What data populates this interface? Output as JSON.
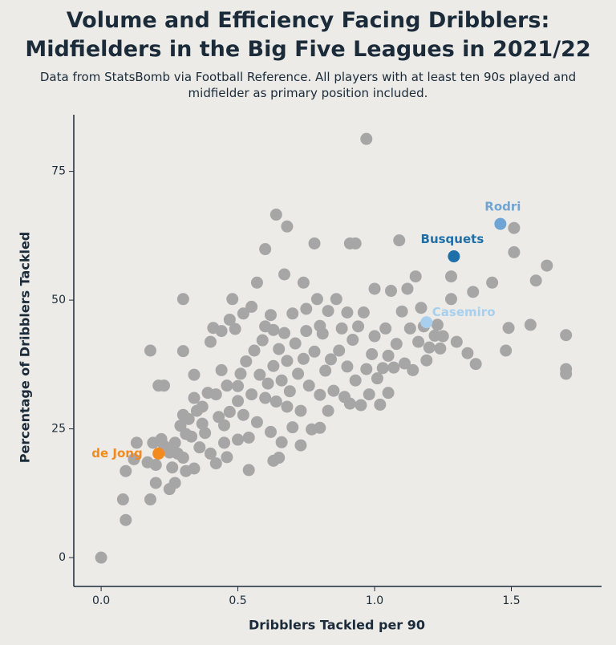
{
  "chart_data": {
    "type": "scatter",
    "title": "Volume and Efficiency Facing Dribblers: Midfielders in the Big Five Leagues in 2021/22",
    "subtitle": "Data from StatsBomb via Football Reference. All players with at least ten 90s played and midfielder as primary position included.",
    "x_label": "Dribblers Tackled per 90",
    "y_label": "Percentage of Dribblers Tackled",
    "xlim": [
      -0.1,
      1.83
    ],
    "ylim": [
      -5.6,
      86
    ],
    "xticks": [
      {
        "value": 0,
        "label": "0.0"
      },
      0.5,
      {
        "value": 1,
        "label": "1.0"
      },
      1.5
    ],
    "yticks": [
      0,
      25,
      50,
      75
    ],
    "series": [
      {
        "color": "#a6a6a6",
        "x": [
          0,
          0.08,
          0.09,
          0.09,
          0.13,
          0.17,
          0.18,
          0.18,
          0.19,
          0.2,
          0.2,
          0.21,
          0.23,
          0.23,
          0.25,
          0.25,
          0.26,
          0.27,
          0.27,
          0.28,
          0.29,
          0.3,
          0.3,
          0.3,
          0.3,
          0.31,
          0.31,
          0.32,
          0.33,
          0.34,
          0.34,
          0.34,
          0.35,
          0.36,
          0.37,
          0.37,
          0.38,
          0.39,
          0.4,
          0.4,
          0.41,
          0.42,
          0.42,
          0.43,
          0.44,
          0.44,
          0.45,
          0.45,
          0.46,
          0.46,
          0.47,
          0.47,
          0.48,
          0.49,
          0.5,
          0.5,
          0.5,
          0.51,
          0.52,
          0.52,
          0.53,
          0.54,
          0.54,
          0.55,
          0.56,
          0.57,
          0.57,
          0.58,
          0.59,
          0.6,
          0.6,
          0.6,
          0.61,
          0.62,
          0.62,
          0.63,
          0.63,
          0.64,
          0.64,
          0.65,
          0.65,
          0.66,
          0.66,
          0.67,
          0.67,
          0.68,
          0.68,
          0.68,
          0.69,
          0.7,
          0.7,
          0.71,
          0.72,
          0.73,
          0.73,
          0.74,
          0.74,
          0.75,
          0.75,
          0.76,
          0.77,
          0.78,
          0.78,
          0.79,
          0.8,
          0.8,
          0.81,
          0.82,
          0.83,
          0.83,
          0.84,
          0.85,
          0.86,
          0.87,
          0.88,
          0.89,
          0.9,
          0.9,
          0.91,
          0.91,
          0.92,
          0.93,
          0.94,
          0.95,
          0.96,
          0.97,
          0.97,
          0.98,
          0.99,
          1.0,
          1.0,
          1.01,
          1.02,
          1.03,
          1.04,
          1.05,
          1.05,
          1.06,
          1.07,
          1.08,
          1.09,
          1.1,
          1.11,
          1.12,
          1.13,
          1.14,
          1.15,
          1.16,
          1.17,
          1.18,
          1.19,
          1.2,
          1.22,
          1.23,
          1.24,
          1.28,
          1.28,
          1.3,
          1.34,
          1.36,
          1.37,
          1.43,
          1.48,
          1.49,
          1.51,
          1.51,
          1.57,
          1.59,
          1.63,
          1.7,
          1.7,
          1.7,
          0.12,
          0.22,
          0.55,
          0.63,
          0.8,
          1.25,
          0.93
        ],
        "values": [
          0,
          11.3,
          7.3,
          16.8,
          22.3,
          18.5,
          11.3,
          40.2,
          22.3,
          14.5,
          18,
          33.4,
          33.4,
          21.7,
          20.4,
          13.3,
          17.5,
          14.5,
          22.3,
          20.2,
          25.6,
          50.2,
          40.1,
          27.7,
          19.4,
          24,
          16.8,
          26.9,
          23.5,
          31,
          35.5,
          17.3,
          28.5,
          21.4,
          26,
          29.3,
          24.2,
          32,
          20.2,
          41.9,
          44.6,
          31.7,
          18.3,
          27.3,
          36.4,
          44,
          22.3,
          25.7,
          19.5,
          33.4,
          28.3,
          46.2,
          50.2,
          44.4,
          22.9,
          30.4,
          33.3,
          35.7,
          27.7,
          47.4,
          38.1,
          17,
          23.3,
          31.7,
          40.2,
          53.4,
          26.3,
          35.5,
          42.2,
          59.9,
          31,
          44.9,
          33.8,
          47.1,
          24.4,
          18.8,
          37.2,
          66.6,
          30.3,
          19.4,
          40.5,
          34.4,
          22.4,
          55,
          43.6,
          64.3,
          38.2,
          29.3,
          32.3,
          47.4,
          25.3,
          41.6,
          35.7,
          28.5,
          21.8,
          53.4,
          38.6,
          48.3,
          44,
          33.4,
          24.9,
          61,
          40,
          50.2,
          31.6,
          25.2,
          43.5,
          36.3,
          47.9,
          28.5,
          38.5,
          32.4,
          50.2,
          40.2,
          44.5,
          31.2,
          37.1,
          47.6,
          61,
          29.9,
          42.3,
          34.4,
          44.9,
          29.6,
          47.6,
          81.3,
          36.6,
          31.7,
          39.5,
          52.2,
          43,
          34.8,
          29.7,
          36.8,
          44.5,
          32,
          39.2,
          51.8,
          36.9,
          41.5,
          61.6,
          47.8,
          37.7,
          52.2,
          44.5,
          36.4,
          54.6,
          41.9,
          48.5,
          44.9,
          38.3,
          40.8,
          43.1,
          45.2,
          40.6,
          54.6,
          50.2,
          41.9,
          39.7,
          51.6,
          37.6,
          53.4,
          40.2,
          44.6,
          64,
          59.3,
          45.2,
          53.8,
          56.7,
          43.2,
          36.6,
          35.7,
          19.1,
          23,
          48.7,
          44.2,
          45,
          43,
          61
        ]
      },
      {
        "name": "Rodri",
        "color": "#6fa5d4",
        "x": [
          1.46
        ],
        "values": [
          64.8
        ]
      },
      {
        "name": "Busquets",
        "color": "#1f6fa8",
        "x": [
          1.29
        ],
        "values": [
          58.5
        ]
      },
      {
        "name": "Casemiro",
        "color": "#a8cfee",
        "x": [
          1.19
        ],
        "values": [
          45.7
        ]
      },
      {
        "name": "de Jong",
        "color": "#f28a1e",
        "x": [
          0.21
        ],
        "values": [
          20.2
        ]
      }
    ]
  }
}
